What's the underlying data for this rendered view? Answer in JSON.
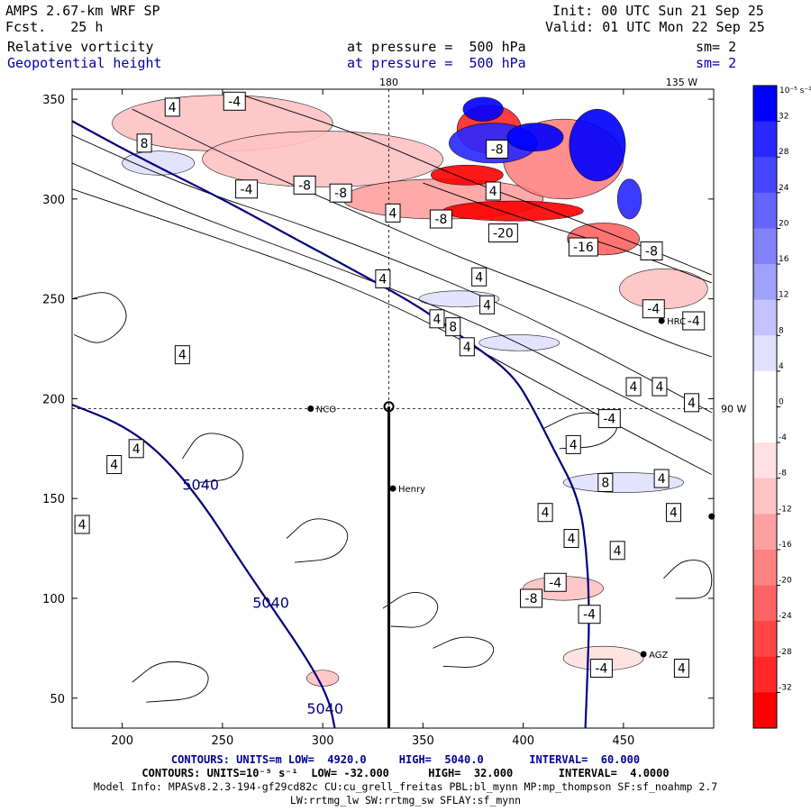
{
  "header": {
    "model": "AMPS 2.67-km WRF SP",
    "fcst_label": "Fcst.",
    "fcst_value": "25 h",
    "init": "Init: 00 UTC Sun 21 Sep 25",
    "valid": "Valid: 01 UTC Mon 22 Sep 25",
    "field1_name": "Relative vorticity",
    "field1_level": "at pressure =  500 hPa",
    "field1_sm": "sm= 2",
    "field2_name": "Geopotential height",
    "field2_level": "at pressure =  500 hPa",
    "field2_sm": "sm= 2"
  },
  "colorbar": {
    "unit": "10⁻⁵ s⁻¹",
    "ticks": [
      "32",
      "28",
      "24",
      "20",
      "16",
      "12",
      "8",
      "4",
      "0",
      "-4",
      "-8",
      "-12",
      "-16",
      "-20",
      "-24",
      "-28",
      "-32"
    ],
    "colors_top_to_bottom": [
      "#0000ff",
      "#2828ff",
      "#4646ff",
      "#6464ff",
      "#8282ff",
      "#a0a0ff",
      "#c3c3ff",
      "#e1e1ff",
      "#ffffff",
      "#ffffff",
      "#ffe1e1",
      "#ffc3c3",
      "#ffa0a0",
      "#ff8282",
      "#ff6464",
      "#ff4646",
      "#ff2828",
      "#ff0000"
    ]
  },
  "chart_data": {
    "type": "contour",
    "title": "Relative vorticity / Geopotential height at 500 hPa",
    "xlim": [
      175,
      495
    ],
    "ylim": [
      35,
      355
    ],
    "xticks": [
      200,
      250,
      300,
      350,
      400,
      450
    ],
    "yticks": [
      50,
      100,
      150,
      200,
      250,
      300,
      350
    ],
    "top_labels": [
      {
        "x": 333,
        "text": "180"
      },
      {
        "x": 479,
        "text": "135 W"
      }
    ],
    "right_label": {
      "y": 195,
      "text": "90 W"
    },
    "dashed_lines": {
      "x": 333,
      "y": 195
    },
    "stations": [
      {
        "x": 294,
        "y": 195,
        "name": "NCO"
      },
      {
        "x": 335,
        "y": 155,
        "name": "Henry"
      },
      {
        "x": 469,
        "y": 239,
        "name": "HRC"
      },
      {
        "x": 460,
        "y": 72,
        "name": "AGZ"
      },
      {
        "x": 494,
        "y": 141,
        "name": ""
      }
    ],
    "pole_marker": {
      "x": 333,
      "y": 196
    },
    "section_line": {
      "x": 333,
      "y_from": 35,
      "y_to": 196
    },
    "height_contours": [
      {
        "value": "5040",
        "points": [
          [
            175,
            339
          ],
          [
            210,
            320
          ],
          [
            250,
            300
          ],
          [
            290,
            278
          ],
          [
            320,
            262
          ],
          [
            350,
            245
          ],
          [
            375,
            227
          ],
          [
            395,
            212
          ],
          [
            405,
            195
          ],
          [
            415,
            175
          ],
          [
            428,
            150
          ],
          [
            432,
            120
          ],
          [
            433,
            90
          ],
          [
            432,
            60
          ],
          [
            431,
            35
          ]
        ]
      },
      {
        "value": "5040",
        "points": [
          [
            175,
            197
          ],
          [
            200,
            187
          ],
          [
            220,
            172
          ],
          [
            240,
            148
          ],
          [
            258,
            120
          ],
          [
            275,
            95
          ],
          [
            292,
            70
          ],
          [
            303,
            50
          ],
          [
            306,
            35
          ]
        ]
      }
    ],
    "height_labels": [
      {
        "x": 230,
        "y": 157,
        "text": "5040"
      },
      {
        "x": 265,
        "y": 98,
        "text": "5040"
      },
      {
        "x": 292,
        "y": 45,
        "text": "5040"
      }
    ],
    "vorticity_contours": [
      [
        [
          175,
          332
        ],
        [
          230,
          307
        ],
        [
          290,
          287
        ],
        [
          340,
          268
        ],
        [
          390,
          247
        ],
        [
          440,
          222
        ],
        [
          494,
          193
        ]
      ],
      [
        [
          175,
          318
        ],
        [
          230,
          294
        ],
        [
          290,
          272
        ],
        [
          340,
          253
        ],
        [
          390,
          232
        ],
        [
          440,
          206
        ],
        [
          494,
          179
        ]
      ],
      [
        [
          175,
          305
        ],
        [
          240,
          283
        ],
        [
          300,
          262
        ],
        [
          350,
          240
        ],
        [
          400,
          212
        ],
        [
          450,
          185
        ],
        [
          494,
          162
        ]
      ],
      [
        [
          205,
          345
        ],
        [
          260,
          318
        ],
        [
          320,
          292
        ],
        [
          370,
          270
        ],
        [
          420,
          251
        ],
        [
          470,
          229
        ],
        [
          494,
          221
        ]
      ],
      [
        [
          260,
          352
        ],
        [
          320,
          332
        ],
        [
          370,
          310
        ],
        [
          420,
          292
        ],
        [
          470,
          272
        ],
        [
          494,
          262
        ]
      ],
      [
        [
          350,
          308
        ],
        [
          400,
          290
        ],
        [
          450,
          275
        ],
        [
          494,
          258
        ]
      ],
      [
        [
          175,
          250
        ],
        [
          195,
          255
        ],
        [
          205,
          240
        ],
        [
          190,
          226
        ],
        [
          176,
          232
        ]
      ],
      [
        [
          230,
          170
        ],
        [
          240,
          185
        ],
        [
          262,
          178
        ],
        [
          258,
          160
        ],
        [
          238,
          158
        ]
      ],
      [
        [
          282,
          130
        ],
        [
          295,
          142
        ],
        [
          315,
          135
        ],
        [
          308,
          120
        ],
        [
          286,
          118
        ]
      ],
      [
        [
          205,
          58
        ],
        [
          220,
          70
        ],
        [
          245,
          65
        ],
        [
          240,
          50
        ],
        [
          212,
          48
        ]
      ],
      [
        [
          330,
          95
        ],
        [
          345,
          105
        ],
        [
          360,
          98
        ],
        [
          352,
          85
        ],
        [
          334,
          86
        ]
      ],
      [
        [
          410,
          185
        ],
        [
          430,
          195
        ],
        [
          450,
          188
        ],
        [
          440,
          176
        ],
        [
          418,
          175
        ]
      ],
      [
        [
          355,
          75
        ],
        [
          370,
          82
        ],
        [
          388,
          77
        ],
        [
          380,
          65
        ],
        [
          360,
          66
        ]
      ],
      [
        [
          470,
          110
        ],
        [
          480,
          120
        ],
        [
          494,
          118
        ],
        [
          494,
          100
        ],
        [
          476,
          100
        ]
      ]
    ],
    "vorticity_labels": [
      {
        "x": 225,
        "y": 346,
        "text": "4"
      },
      {
        "x": 256,
        "y": 349,
        "text": "-4"
      },
      {
        "x": 211,
        "y": 328,
        "text": "8"
      },
      {
        "x": 262,
        "y": 305,
        "text": "-4"
      },
      {
        "x": 291,
        "y": 307,
        "text": "-8"
      },
      {
        "x": 335,
        "y": 293,
        "text": "4"
      },
      {
        "x": 330,
        "y": 260,
        "text": "4"
      },
      {
        "x": 309,
        "y": 303,
        "text": "-8"
      },
      {
        "x": 385,
        "y": 304,
        "text": "4"
      },
      {
        "x": 387,
        "y": 325,
        "text": "-8"
      },
      {
        "x": 390,
        "y": 283,
        "text": "-20"
      },
      {
        "x": 359,
        "y": 290,
        "text": "-8"
      },
      {
        "x": 430,
        "y": 276,
        "text": "-16"
      },
      {
        "x": 464,
        "y": 274,
        "text": "-8"
      },
      {
        "x": 378,
        "y": 261,
        "text": "4"
      },
      {
        "x": 382,
        "y": 247,
        "text": "4"
      },
      {
        "x": 357,
        "y": 240,
        "text": "4"
      },
      {
        "x": 365,
        "y": 236,
        "text": "8"
      },
      {
        "x": 372,
        "y": 226,
        "text": "4"
      },
      {
        "x": 230,
        "y": 222,
        "text": "4"
      },
      {
        "x": 465,
        "y": 245,
        "text": "-4"
      },
      {
        "x": 485,
        "y": 239,
        "text": "-4"
      },
      {
        "x": 455,
        "y": 206,
        "text": "4"
      },
      {
        "x": 468,
        "y": 206,
        "text": "4"
      },
      {
        "x": 484,
        "y": 198,
        "text": "4"
      },
      {
        "x": 443,
        "y": 190,
        "text": "-4"
      },
      {
        "x": 425,
        "y": 177,
        "text": "4"
      },
      {
        "x": 207,
        "y": 175,
        "text": "4"
      },
      {
        "x": 196,
        "y": 167,
        "text": "4"
      },
      {
        "x": 441,
        "y": 158,
        "text": "8"
      },
      {
        "x": 469,
        "y": 160,
        "text": "4"
      },
      {
        "x": 180,
        "y": 137,
        "text": "4"
      },
      {
        "x": 411,
        "y": 143,
        "text": "4"
      },
      {
        "x": 475,
        "y": 143,
        "text": "4"
      },
      {
        "x": 424,
        "y": 130,
        "text": "4"
      },
      {
        "x": 447,
        "y": 124,
        "text": "4"
      },
      {
        "x": 416,
        "y": 108,
        "text": "-4"
      },
      {
        "x": 404,
        "y": 100,
        "text": "-8"
      },
      {
        "x": 433,
        "y": 92,
        "text": "-4"
      },
      {
        "x": 439,
        "y": 65,
        "text": "-4"
      },
      {
        "x": 479,
        "y": 65,
        "text": "4"
      }
    ],
    "positive_patches": [
      {
        "x": 218,
        "y": 318,
        "rx": 18,
        "ry": 6,
        "value": 6
      },
      {
        "x": 368,
        "y": 250,
        "rx": 20,
        "ry": 4,
        "value": 6
      },
      {
        "x": 398,
        "y": 228,
        "rx": 20,
        "ry": 4,
        "value": 6
      },
      {
        "x": 450,
        "y": 158,
        "rx": 30,
        "ry": 5,
        "value": 6
      },
      {
        "x": 385,
        "y": 328,
        "rx": 22,
        "ry": 10,
        "value": 30
      },
      {
        "x": 406,
        "y": 331,
        "rx": 14,
        "ry": 7,
        "value": 34
      },
      {
        "x": 437,
        "y": 327,
        "rx": 14,
        "ry": 18,
        "value": 34
      },
      {
        "x": 453,
        "y": 300,
        "rx": 6,
        "ry": 10,
        "value": 30
      },
      {
        "x": 380,
        "y": 345,
        "rx": 10,
        "ry": 6,
        "value": 34
      }
    ],
    "negative_patches": [
      {
        "x": 250,
        "y": 338,
        "rx": 55,
        "ry": 14,
        "value": -10
      },
      {
        "x": 300,
        "y": 320,
        "rx": 60,
        "ry": 14,
        "value": -8
      },
      {
        "x": 360,
        "y": 300,
        "rx": 50,
        "ry": 10,
        "value": -12
      },
      {
        "x": 395,
        "y": 294,
        "rx": 35,
        "ry": 5,
        "value": -34
      },
      {
        "x": 372,
        "y": 312,
        "rx": 18,
        "ry": 5,
        "value": -34
      },
      {
        "x": 383,
        "y": 335,
        "rx": 16,
        "ry": 12,
        "value": -30
      },
      {
        "x": 420,
        "y": 320,
        "rx": 30,
        "ry": 20,
        "value": -16
      },
      {
        "x": 440,
        "y": 280,
        "rx": 18,
        "ry": 8,
        "value": -22
      },
      {
        "x": 470,
        "y": 255,
        "rx": 22,
        "ry": 10,
        "value": -8
      },
      {
        "x": 420,
        "y": 105,
        "rx": 20,
        "ry": 6,
        "value": -10
      },
      {
        "x": 440,
        "y": 70,
        "rx": 20,
        "ry": 6,
        "value": -6
      },
      {
        "x": 300,
        "y": 60,
        "rx": 8,
        "ry": 4,
        "value": -8
      }
    ]
  },
  "footer": {
    "line1_a": "CONTOURS: UNITS=m LOW=  4920.0",
    "line1_b": "HIGH=  5040.0",
    "line1_c": "INTERVAL=  60.000",
    "line2_a": "CONTOURS: UNITS=10⁻⁵ s⁻¹  LOW= -32.000",
    "line2_b": "HIGH=  32.000",
    "line2_c": "INTERVAL=  4.0000",
    "line3": "Model Info: MPASv8.2.3-194-gf29cd82c CU:cu_grell_freitas PBL:bl_mynn MP:mp_thompson SF:sf_noahmp 2.7",
    "line4": "LW:rrtmg_lw SW:rrtmg_sw SFLAY:sf_mynn"
  }
}
